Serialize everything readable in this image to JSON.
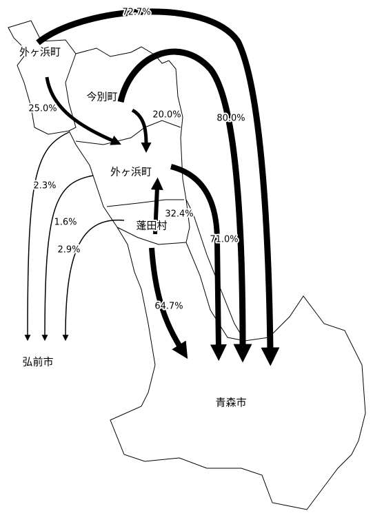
{
  "places": [
    "外ヶ浜町",
    "今別町",
    "外ヶ浜町",
    "蓬田村",
    "弘前市",
    "青森市"
  ],
  "flows": [
    "72.7%",
    "25.0%",
    "20.0%",
    "80.0%",
    "2.3%",
    "1.6%",
    "32.4%",
    "71.0%",
    "2.9%",
    "64.7%"
  ]
}
